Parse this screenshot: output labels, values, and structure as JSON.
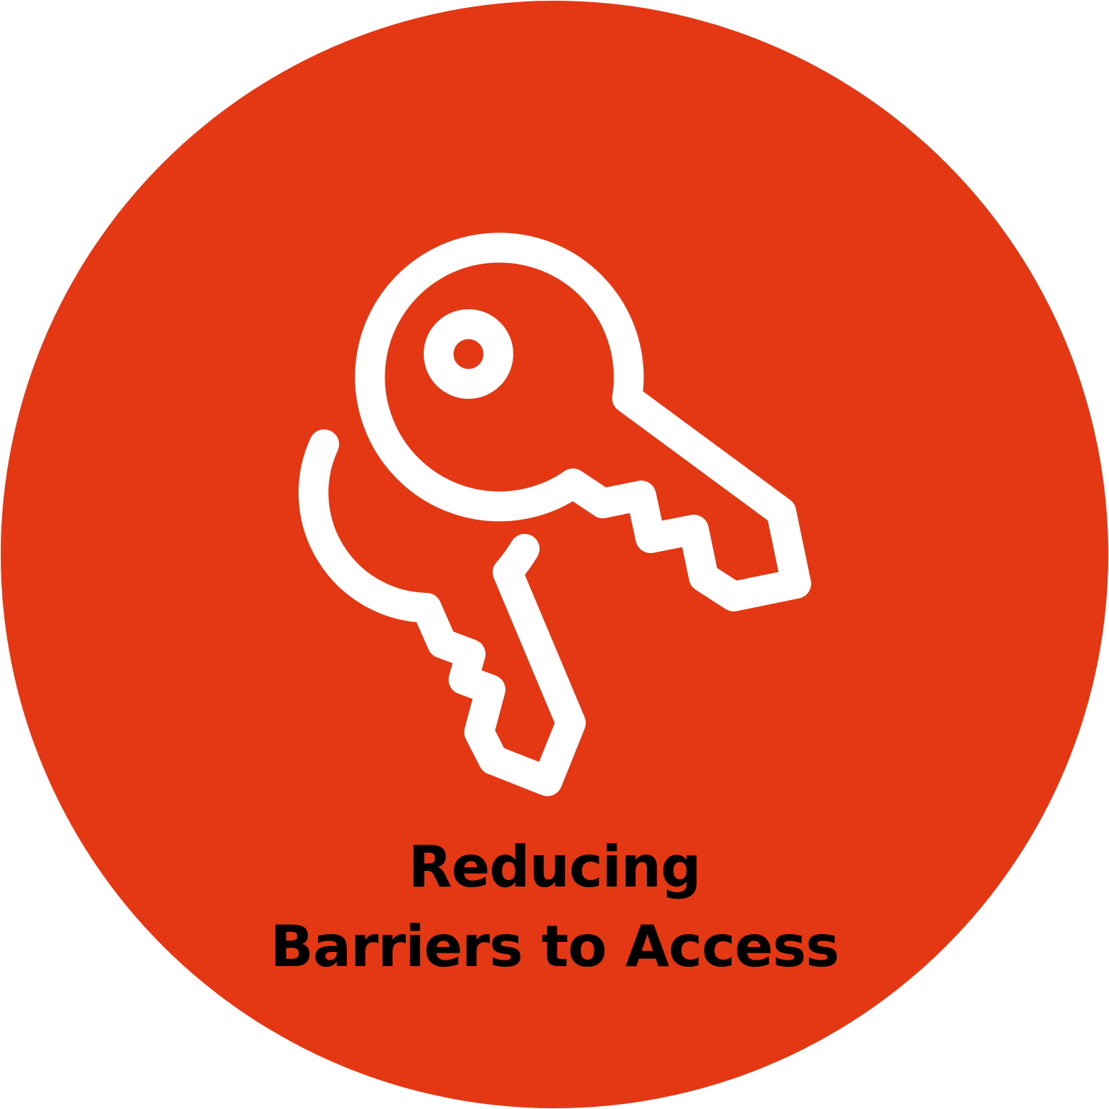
{
  "colors": {
    "background": "#ffffff",
    "badge_fill": "#e43815",
    "icon_stroke": "#ffffff",
    "text": "#000000"
  },
  "icon": {
    "name": "keys-icon"
  },
  "caption": {
    "line1": "Reducing",
    "line2": "Barriers to Access"
  }
}
